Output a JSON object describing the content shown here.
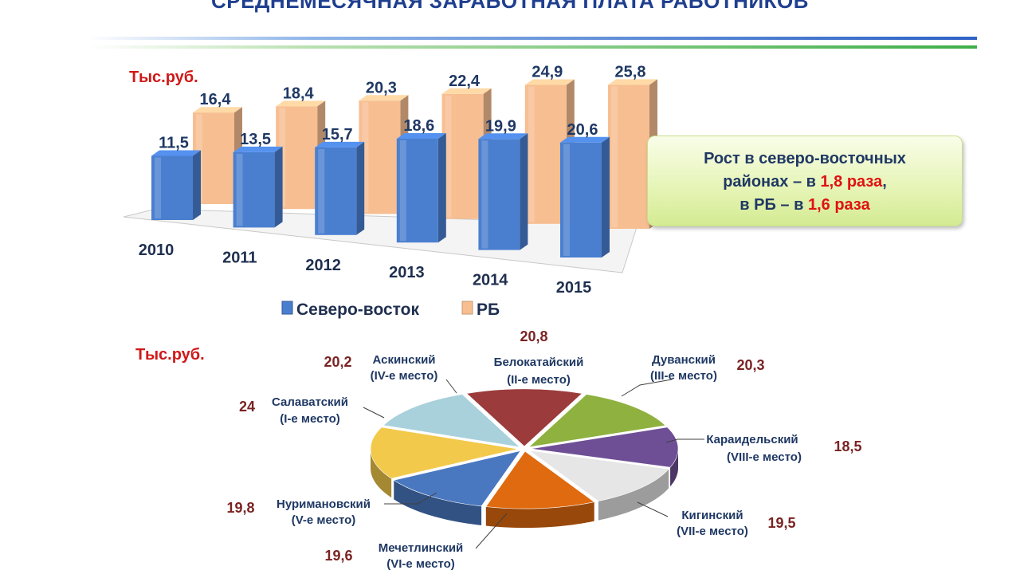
{
  "slide": {
    "title": "СРЕДНЕМЕСЯЧНАЯ ЗАРАБОТНАЯ ПЛАТА РАБОТНИКОВ",
    "unit_top": "Тыс.руб.",
    "unit_bottom": "Тыс.руб."
  },
  "note": {
    "line1": "Рост в северо-восточных",
    "line2_text": "районах – в ",
    "line2_value": "1,8 раза",
    "line2_end": ",",
    "line3_text": "в РБ – в ",
    "line3_value": "1,6 раза"
  },
  "colors": {
    "accent_red": "#e01212",
    "title_blue": "#1f3f8f",
    "series_north_east": "#4a7fd0",
    "series_rb": "#f7be91"
  },
  "chart_data": [
    {
      "type": "bar",
      "categories": [
        "2010",
        "2011",
        "2012",
        "2013",
        "2014",
        "2015"
      ],
      "series": [
        {
          "name": "Северо-восток",
          "values": [
            11.5,
            13.5,
            15.7,
            18.6,
            19.9,
            20.6
          ],
          "labels": [
            "11,5",
            "13,5",
            "15,7",
            "18,6",
            "19,9",
            "20,6"
          ]
        },
        {
          "name": "РБ",
          "values": [
            16.4,
            18.4,
            20.3,
            22.4,
            24.9,
            25.8
          ],
          "labels": [
            "16,4",
            "18,4",
            "20,3",
            "22,4",
            "24,9",
            "25,8"
          ]
        }
      ],
      "legend": "bottom",
      "style": "3d-clustered"
    },
    {
      "type": "pie",
      "style": "3d-exploded",
      "slices": [
        {
          "label": "Белокатайский",
          "place": "(II-е место)",
          "value": 20.8,
          "value_label": "20,8",
          "color": "#9b3b3b"
        },
        {
          "label": "Дуванский",
          "place": "(III-е место)",
          "value": 20.3,
          "value_label": "20,3",
          "color": "#8fb13f"
        },
        {
          "label": "Караидельский",
          "place": "(VIII-е место)",
          "value": 18.5,
          "value_label": "18,5",
          "color": "#6e4f95"
        },
        {
          "label": "Кигинский",
          "place": "(VII-е место)",
          "value": 19.5,
          "value_label": "19,5",
          "color": "#e6e6e6"
        },
        {
          "label": "Мечетлинский",
          "place": "(VI-е место)",
          "value": 19.6,
          "value_label": "19,6",
          "color": "#e06a0f"
        },
        {
          "label": "Нуримановский",
          "place": "(V-е место)",
          "value": 19.8,
          "value_label": "19,8",
          "color": "#4a78c0"
        },
        {
          "label": "Салаватский",
          "place": "(I-е место)",
          "value": 24,
          "value_label": "24",
          "color": "#f2c94a"
        },
        {
          "label": "Аскинский",
          "place": "(IV-е место)",
          "value": 20.2,
          "value_label": "20,2",
          "color": "#a9d1dc"
        }
      ]
    }
  ]
}
